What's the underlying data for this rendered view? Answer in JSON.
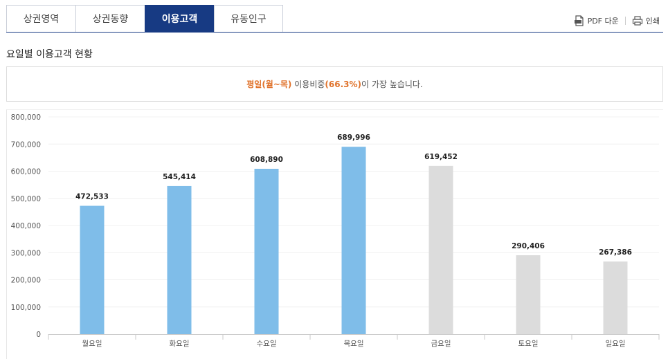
{
  "tabs": [
    {
      "label": "상권영역",
      "active": false
    },
    {
      "label": "상권동향",
      "active": false
    },
    {
      "label": "이용고객",
      "active": true
    },
    {
      "label": "유동인구",
      "active": false
    }
  ],
  "actions": {
    "pdf_label": "PDF 다운",
    "print_label": "인쇄"
  },
  "section_title": "요일별 이용고객 현황",
  "notice": {
    "part1": "평일(월~목)",
    "part2": " 이용비중",
    "part3": "(66.3%)",
    "part4": "이 가장 높습니다."
  },
  "colors": {
    "accent": "#173a83",
    "highlight": "#e0732c",
    "weekday_bar": "#7fbde9",
    "other_bar": "#dcdcdc"
  },
  "chart_data": {
    "type": "bar",
    "categories": [
      "월요일",
      "화요일",
      "수요일",
      "목요일",
      "금요일",
      "토요일",
      "일요일"
    ],
    "values": [
      472533,
      545414,
      608890,
      689996,
      619452,
      290406,
      267386
    ],
    "value_labels": [
      "472,533",
      "545,414",
      "608,890",
      "689,996",
      "619,452",
      "290,406",
      "267,386"
    ],
    "highlighted": [
      true,
      true,
      true,
      true,
      false,
      false,
      false
    ],
    "ylim": [
      0,
      800000
    ],
    "yticks": [
      0,
      100000,
      200000,
      300000,
      400000,
      500000,
      600000,
      700000,
      800000
    ],
    "ytick_labels": [
      "0",
      "100,000",
      "200,000",
      "300,000",
      "400,000",
      "500,000",
      "600,000",
      "700,000",
      "800,000"
    ],
    "grid": true
  }
}
